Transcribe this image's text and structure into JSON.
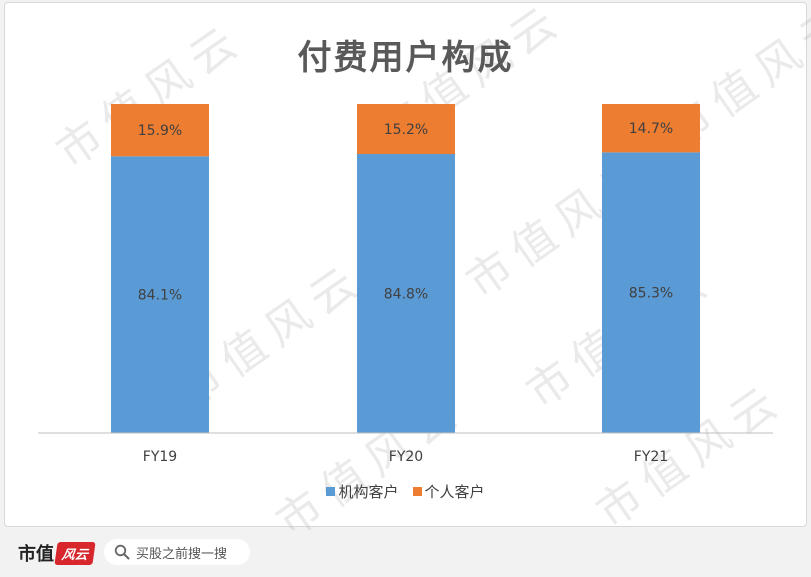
{
  "watermark_text": "市值风云",
  "chart_data": {
    "type": "bar",
    "stacked": true,
    "title": "付费用户构成",
    "categories": [
      "FY19",
      "FY20",
      "FY21"
    ],
    "series": [
      {
        "name": "机构客户",
        "values": [
          84.1,
          84.8,
          85.3
        ],
        "labels": [
          "84.1%",
          "84.8%",
          "85.3%"
        ],
        "color": "#5b9bd5"
      },
      {
        "name": "个人客户",
        "values": [
          15.9,
          15.2,
          14.7
        ],
        "labels": [
          "15.9%",
          "15.2%",
          "14.7%"
        ],
        "color": "#ed7d31"
      }
    ],
    "ylim": [
      0,
      100
    ],
    "grid": false,
    "legend": "bottom"
  },
  "footer": {
    "logo_text": "市值",
    "logo_badge": "风云",
    "search_placeholder": "买股之前搜一搜"
  }
}
